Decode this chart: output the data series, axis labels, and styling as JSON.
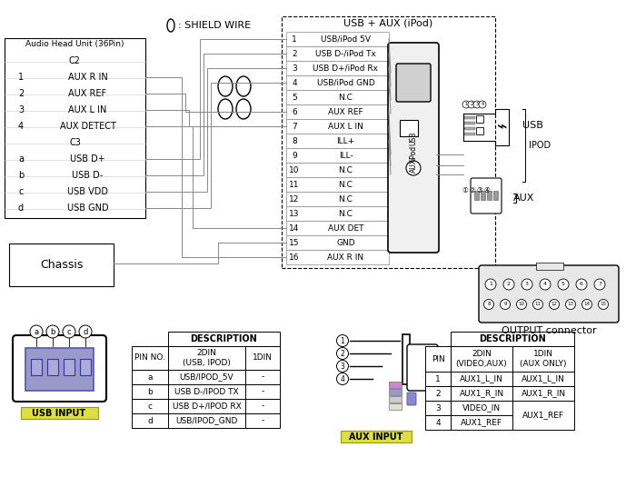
{
  "shield_wire_label": ": SHIELD WIRE",
  "usb_aux_label": "USB + AUX (iPod)",
  "head_unit_label": "Audio Head Unit (36Pin)",
  "head_unit_rows": [
    [
      "",
      "C2"
    ],
    [
      "1",
      "AUX R IN"
    ],
    [
      "2",
      "AUX REF"
    ],
    [
      "3",
      "AUX L IN"
    ],
    [
      "4",
      "AUX DETECT"
    ],
    [
      "",
      "C3"
    ],
    [
      "a",
      "USB D+"
    ],
    [
      "b",
      "USB D-"
    ],
    [
      "c",
      "USB VDD"
    ],
    [
      "d",
      "USB GND"
    ]
  ],
  "connector_16pin_rows": [
    [
      "1",
      "USB/iPod 5V"
    ],
    [
      "2",
      "USB D-/iPod Tx"
    ],
    [
      "3",
      "USB D+/iPod Rx"
    ],
    [
      "4",
      "USB/iPod GND"
    ],
    [
      "5",
      "N.C"
    ],
    [
      "6",
      "AUX REF"
    ],
    [
      "7",
      "AUX L IN"
    ],
    [
      "8",
      "ILL+"
    ],
    [
      "9",
      "ILL-"
    ],
    [
      "10",
      "N.C"
    ],
    [
      "11",
      "N.C"
    ],
    [
      "12",
      "N.C"
    ],
    [
      "13",
      "N.C"
    ],
    [
      "14",
      "AUX DET"
    ],
    [
      "15",
      "GND"
    ],
    [
      "16",
      "AUX R IN"
    ]
  ],
  "usb_label": "USB",
  "ipod_label": "IPOD",
  "aux_label": "AUX",
  "output_connector_label": "OUTPUT connector",
  "chassis_label": "Chassis",
  "usb_input_label": "USB INPUT",
  "aux_input_label": "AUX INPUT",
  "usb_table_rows": [
    [
      "a",
      "USB/IPOD_5V",
      "-"
    ],
    [
      "b",
      "USB D-/IPOD TX",
      "-"
    ],
    [
      "c",
      "USB D+/IPOD RX",
      "-"
    ],
    [
      "d",
      "USB/IPOD_GND",
      "-"
    ]
  ],
  "aux_table_rows": [
    [
      "1",
      "AUX1_L_IN",
      "AUX1_L_IN"
    ],
    [
      "2",
      "AUX1_R_IN",
      "AUX1_R_IN"
    ],
    [
      "3",
      "VIDEO_IN",
      "AUX1_REF"
    ],
    [
      "4",
      "AUX1_REF",
      ""
    ]
  ]
}
